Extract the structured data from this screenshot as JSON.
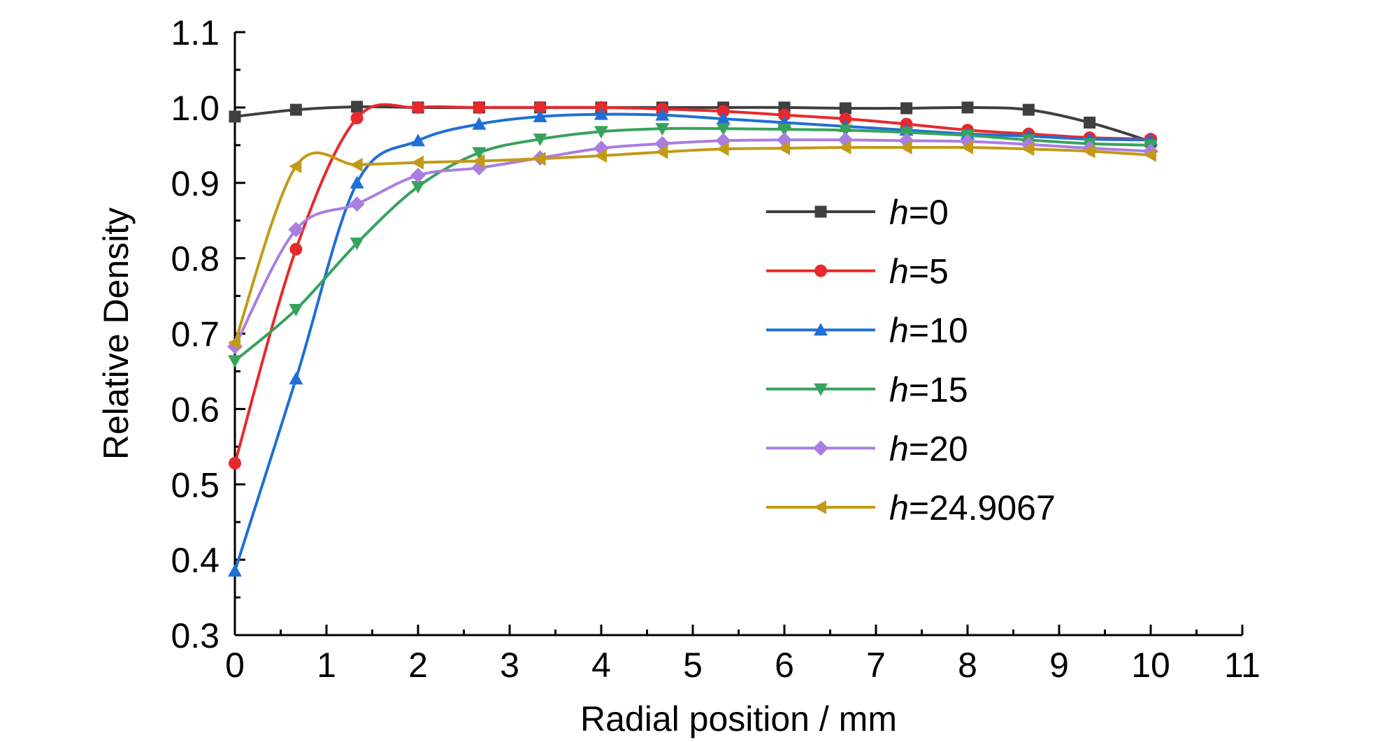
{
  "chart_data": {
    "type": "line",
    "xlabel": "Radial position / mm",
    "ylabel": "Relative Density",
    "xlim": [
      0,
      11
    ],
    "ylim": [
      0.3,
      1.1
    ],
    "xticks": [
      "0",
      "1",
      "2",
      "3",
      "4",
      "5",
      "6",
      "7",
      "8",
      "9",
      "10",
      "11"
    ],
    "yticks": [
      "0.3",
      "0.4",
      "0.5",
      "0.6",
      "0.7",
      "0.8",
      "0.9",
      "1.0",
      "1.1"
    ],
    "x": [
      0,
      0.667,
      1.333,
      2.0,
      2.667,
      3.333,
      4.0,
      4.667,
      5.333,
      6.0,
      6.667,
      7.333,
      8.0,
      8.667,
      9.333,
      10.0
    ],
    "grid": false,
    "legend_position": "center-right",
    "series": [
      {
        "name_prefix": "h",
        "name_suffix": "=0",
        "color": "#3f3f3f",
        "marker": "square",
        "values": [
          0.988,
          0.997,
          1.001,
          1.0,
          1.0,
          1.0,
          1.0,
          1.0,
          1.0,
          1.0,
          0.999,
          0.999,
          1.0,
          0.997,
          0.98,
          0.955
        ]
      },
      {
        "name_prefix": "h",
        "name_suffix": "=5",
        "color": "#e8292b",
        "marker": "circle",
        "values": [
          0.528,
          0.812,
          0.986,
          1.0,
          1.0,
          1.0,
          1.0,
          0.998,
          0.995,
          0.99,
          0.985,
          0.978,
          0.97,
          0.965,
          0.96,
          0.958
        ]
      },
      {
        "name_prefix": "h",
        "name_suffix": "=10",
        "color": "#1f6fd6",
        "marker": "triangle-up",
        "values": [
          0.385,
          0.64,
          0.9,
          0.956,
          0.978,
          0.988,
          0.991,
          0.99,
          0.985,
          0.98,
          0.975,
          0.97,
          0.965,
          0.962,
          0.958,
          0.957
        ]
      },
      {
        "name_prefix": "h",
        "name_suffix": "=15",
        "color": "#36a35c",
        "marker": "triangle-down",
        "values": [
          0.664,
          0.732,
          0.82,
          0.895,
          0.94,
          0.958,
          0.968,
          0.972,
          0.972,
          0.971,
          0.97,
          0.967,
          0.963,
          0.957,
          0.952,
          0.95
        ]
      },
      {
        "name_prefix": "h",
        "name_suffix": "=20",
        "color": "#a97ee0",
        "marker": "diamond",
        "values": [
          0.683,
          0.838,
          0.872,
          0.91,
          0.92,
          0.933,
          0.946,
          0.952,
          0.956,
          0.957,
          0.957,
          0.956,
          0.955,
          0.951,
          0.946,
          0.942
        ]
      },
      {
        "name_prefix": "h",
        "name_suffix": "=24.9067",
        "color": "#c39a16",
        "marker": "triangle-left",
        "values": [
          0.688,
          0.922,
          0.924,
          0.927,
          0.929,
          0.932,
          0.936,
          0.941,
          0.945,
          0.946,
          0.947,
          0.947,
          0.947,
          0.945,
          0.942,
          0.937
        ]
      }
    ]
  }
}
